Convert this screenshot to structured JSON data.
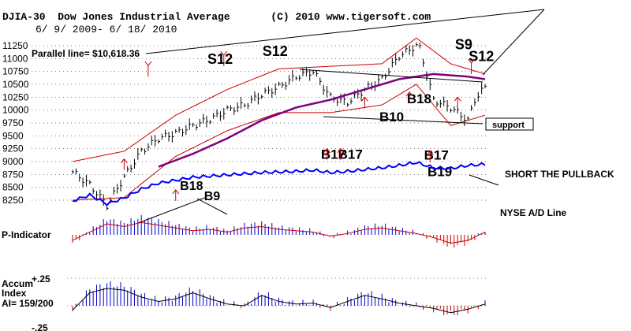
{
  "header": {
    "ticker": "DJIA-30",
    "name": "Dow Jones Industrial Average",
    "copyright": "(C) 2010 www.tigersoft.com",
    "date_range": "6/ 9/ 2009- 6/ 18/ 2010"
  },
  "parallel_line_label": "Parallel line= $10,618.36",
  "annotations": {
    "support": "support",
    "short_pullback": "SHORT THE PULLBACK",
    "nyse_ad": "NYSE A/D Line",
    "p_indicator": "P-Indicator",
    "accum_title_1": "Accum",
    "accum_title_2": "Index",
    "accum_ai": "AI= 159/200",
    "accum_top": "+.25",
    "accum_bottom": "-.25"
  },
  "signals": [
    {
      "label": "S12",
      "price": 10900,
      "idx": 42,
      "size": 18
    },
    {
      "label": "S12",
      "price": 11050,
      "idx": 58,
      "size": 18
    },
    {
      "label": "B18",
      "price": 8450,
      "idx": 34,
      "size": 16
    },
    {
      "label": "B9",
      "price": 8250,
      "idx": 41,
      "size": 16
    },
    {
      "label": "B17",
      "price": 9050,
      "idx": 75,
      "size": 17
    },
    {
      "label": "B17",
      "price": 9050,
      "idx": 80,
      "size": 17
    },
    {
      "label": "B10",
      "price": 9780,
      "idx": 92,
      "size": 17
    },
    {
      "label": "B18",
      "price": 10130,
      "idx": 100,
      "size": 17
    },
    {
      "label": "B17",
      "price": 9040,
      "idx": 105,
      "size": 17
    },
    {
      "label": "B19",
      "price": 8720,
      "idx": 106,
      "size": 17
    },
    {
      "label": "S9",
      "price": 11180,
      "idx": 114,
      "size": 18
    },
    {
      "label": "S12",
      "price": 10950,
      "idx": 118,
      "size": 18
    }
  ],
  "colors": {
    "price_bars": "#000000",
    "upper_band": "#cc0000",
    "lower_band": "#cc0000",
    "ma65": "#800080",
    "ad_line": "#0000ff",
    "pind_positive": "#0000cc",
    "pind_negative": "#cc0000",
    "grid": "#000000"
  },
  "chart_data": [
    {
      "type": "line",
      "title": "DJIA-30 Dow Jones Industrial Average",
      "x_range": [
        "6/9/2009",
        "6/18/2010"
      ],
      "y_ticks": [
        8250,
        8500,
        8750,
        9000,
        9250,
        9500,
        9750,
        10000,
        10250,
        10500,
        10750,
        11000,
        11250
      ],
      "ylim": [
        8100,
        11300
      ],
      "grid": "dashed horizontal",
      "series": [
        {
          "role": "price",
          "x": [
            0,
            5,
            10,
            15,
            20,
            25,
            30,
            35,
            40,
            45,
            50,
            55,
            60,
            65,
            70,
            75,
            80,
            85,
            90,
            95,
            100,
            101,
            105,
            110,
            115,
            117,
            120
          ],
          "y": [
            8800,
            8550,
            8150,
            8700,
            9200,
            9450,
            9550,
            9700,
            9820,
            10000,
            10100,
            10300,
            10450,
            10650,
            10750,
            10250,
            10150,
            10400,
            10600,
            11050,
            11250,
            11200,
            10200,
            10050,
            9800,
            10200,
            10450
          ]
        },
        {
          "role": "upper-band",
          "x": [
            0,
            15,
            30,
            45,
            60,
            75,
            90,
            100,
            110,
            120
          ],
          "y": [
            9000,
            9200,
            9900,
            10400,
            10800,
            10850,
            10900,
            11400,
            10900,
            10700
          ]
        },
        {
          "role": "lower-band",
          "x": [
            0,
            15,
            30,
            45,
            60,
            75,
            90,
            100,
            110,
            120
          ],
          "y": [
            8250,
            8300,
            9100,
            9600,
            9950,
            9950,
            10100,
            10500,
            9700,
            9900
          ]
        },
        {
          "role": "ma",
          "x": [
            25,
            35,
            45,
            55,
            65,
            75,
            85,
            95,
            105,
            115,
            120
          ],
          "y": [
            8900,
            9150,
            9450,
            9800,
            10050,
            10200,
            10400,
            10600,
            10700,
            10650,
            10600
          ]
        }
      ]
    },
    {
      "type": "line",
      "title": "NYSE A/D Line",
      "x": [
        0,
        5,
        10,
        15,
        20,
        25,
        30,
        35,
        40,
        45,
        50,
        55,
        60,
        65,
        70,
        75,
        80,
        85,
        90,
        95,
        100,
        105,
        110,
        115,
        120
      ],
      "y": [
        20,
        30,
        15,
        25,
        40,
        50,
        55,
        60,
        62,
        64,
        66,
        68,
        69,
        70,
        72,
        68,
        70,
        73,
        76,
        80,
        85,
        76,
        75,
        80,
        82
      ]
    },
    {
      "type": "bar",
      "title": "P-Indicator",
      "x": [
        0,
        5,
        10,
        15,
        20,
        25,
        30,
        35,
        40,
        45,
        50,
        55,
        60,
        65,
        70,
        75,
        80,
        85,
        90,
        95,
        100,
        105,
        110,
        115,
        120
      ],
      "values": [
        -20,
        10,
        40,
        30,
        45,
        35,
        25,
        15,
        20,
        10,
        25,
        30,
        20,
        15,
        10,
        -5,
        5,
        20,
        25,
        15,
        5,
        -10,
        -30,
        -20,
        10
      ]
    },
    {
      "type": "bar",
      "title": "Accum Index",
      "ylim": [
        -0.25,
        0.25
      ],
      "x": [
        0,
        5,
        10,
        15,
        20,
        25,
        30,
        35,
        40,
        45,
        50,
        55,
        60,
        65,
        70,
        75,
        80,
        85,
        90,
        95,
        100,
        105,
        110,
        115,
        120
      ],
      "values": [
        -0.05,
        0.15,
        0.2,
        0.18,
        0.1,
        0.05,
        0.08,
        0.15,
        0.08,
        0.02,
        0.0,
        0.12,
        0.05,
        0.02,
        0.03,
        -0.02,
        0.05,
        0.12,
        0.08,
        0.03,
        0.0,
        -0.03,
        -0.08,
        -0.04,
        0.02
      ]
    }
  ]
}
